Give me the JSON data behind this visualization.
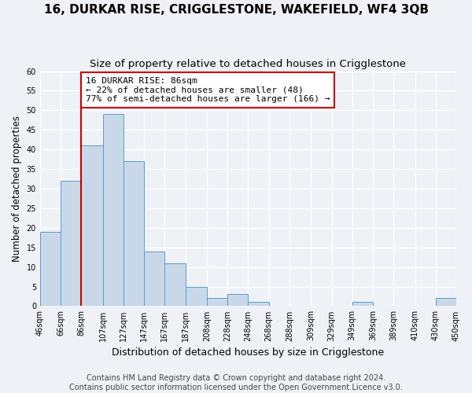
{
  "title": "16, DURKAR RISE, CRIGGLESTONE, WAKEFIELD, WF4 3QB",
  "subtitle": "Size of property relative to detached houses in Crigglestone",
  "xlabel": "Distribution of detached houses by size in Crigglestone",
  "ylabel": "Number of detached properties",
  "bin_edges": [
    46,
    66,
    86,
    107,
    127,
    147,
    167,
    187,
    208,
    228,
    248,
    268,
    288,
    309,
    329,
    349,
    369,
    389,
    410,
    430,
    450
  ],
  "bin_labels": [
    "46sqm",
    "66sqm",
    "86sqm",
    "107sqm",
    "127sqm",
    "147sqm",
    "167sqm",
    "187sqm",
    "208sqm",
    "228sqm",
    "248sqm",
    "268sqm",
    "288sqm",
    "309sqm",
    "329sqm",
    "349sqm",
    "369sqm",
    "389sqm",
    "410sqm",
    "430sqm",
    "450sqm"
  ],
  "counts": [
    19,
    32,
    41,
    49,
    37,
    14,
    11,
    5,
    2,
    3,
    1,
    0,
    0,
    0,
    0,
    1,
    0,
    0,
    0,
    2
  ],
  "bar_color": "#c8d8e8",
  "bar_edge_color": "#5a9ec8",
  "property_line_x": 86,
  "property_line_color": "#cc0000",
  "annotation_text": "16 DURKAR RISE: 86sqm\n← 22% of detached houses are smaller (48)\n77% of semi-detached houses are larger (166) →",
  "annotation_box_color": "#ffffff",
  "annotation_box_edge_color": "#cc0000",
  "ylim": [
    0,
    60
  ],
  "yticks": [
    0,
    5,
    10,
    15,
    20,
    25,
    30,
    35,
    40,
    45,
    50,
    55,
    60
  ],
  "footer_line1": "Contains HM Land Registry data © Crown copyright and database right 2024.",
  "footer_line2": "Contains public sector information licensed under the Open Government Licence v3.0.",
  "background_color": "#eef2f7",
  "grid_color": "#ffffff",
  "title_fontsize": 11,
  "subtitle_fontsize": 9.5,
  "xlabel_fontsize": 9,
  "ylabel_fontsize": 8.5,
  "tick_fontsize": 7,
  "footer_fontsize": 7
}
